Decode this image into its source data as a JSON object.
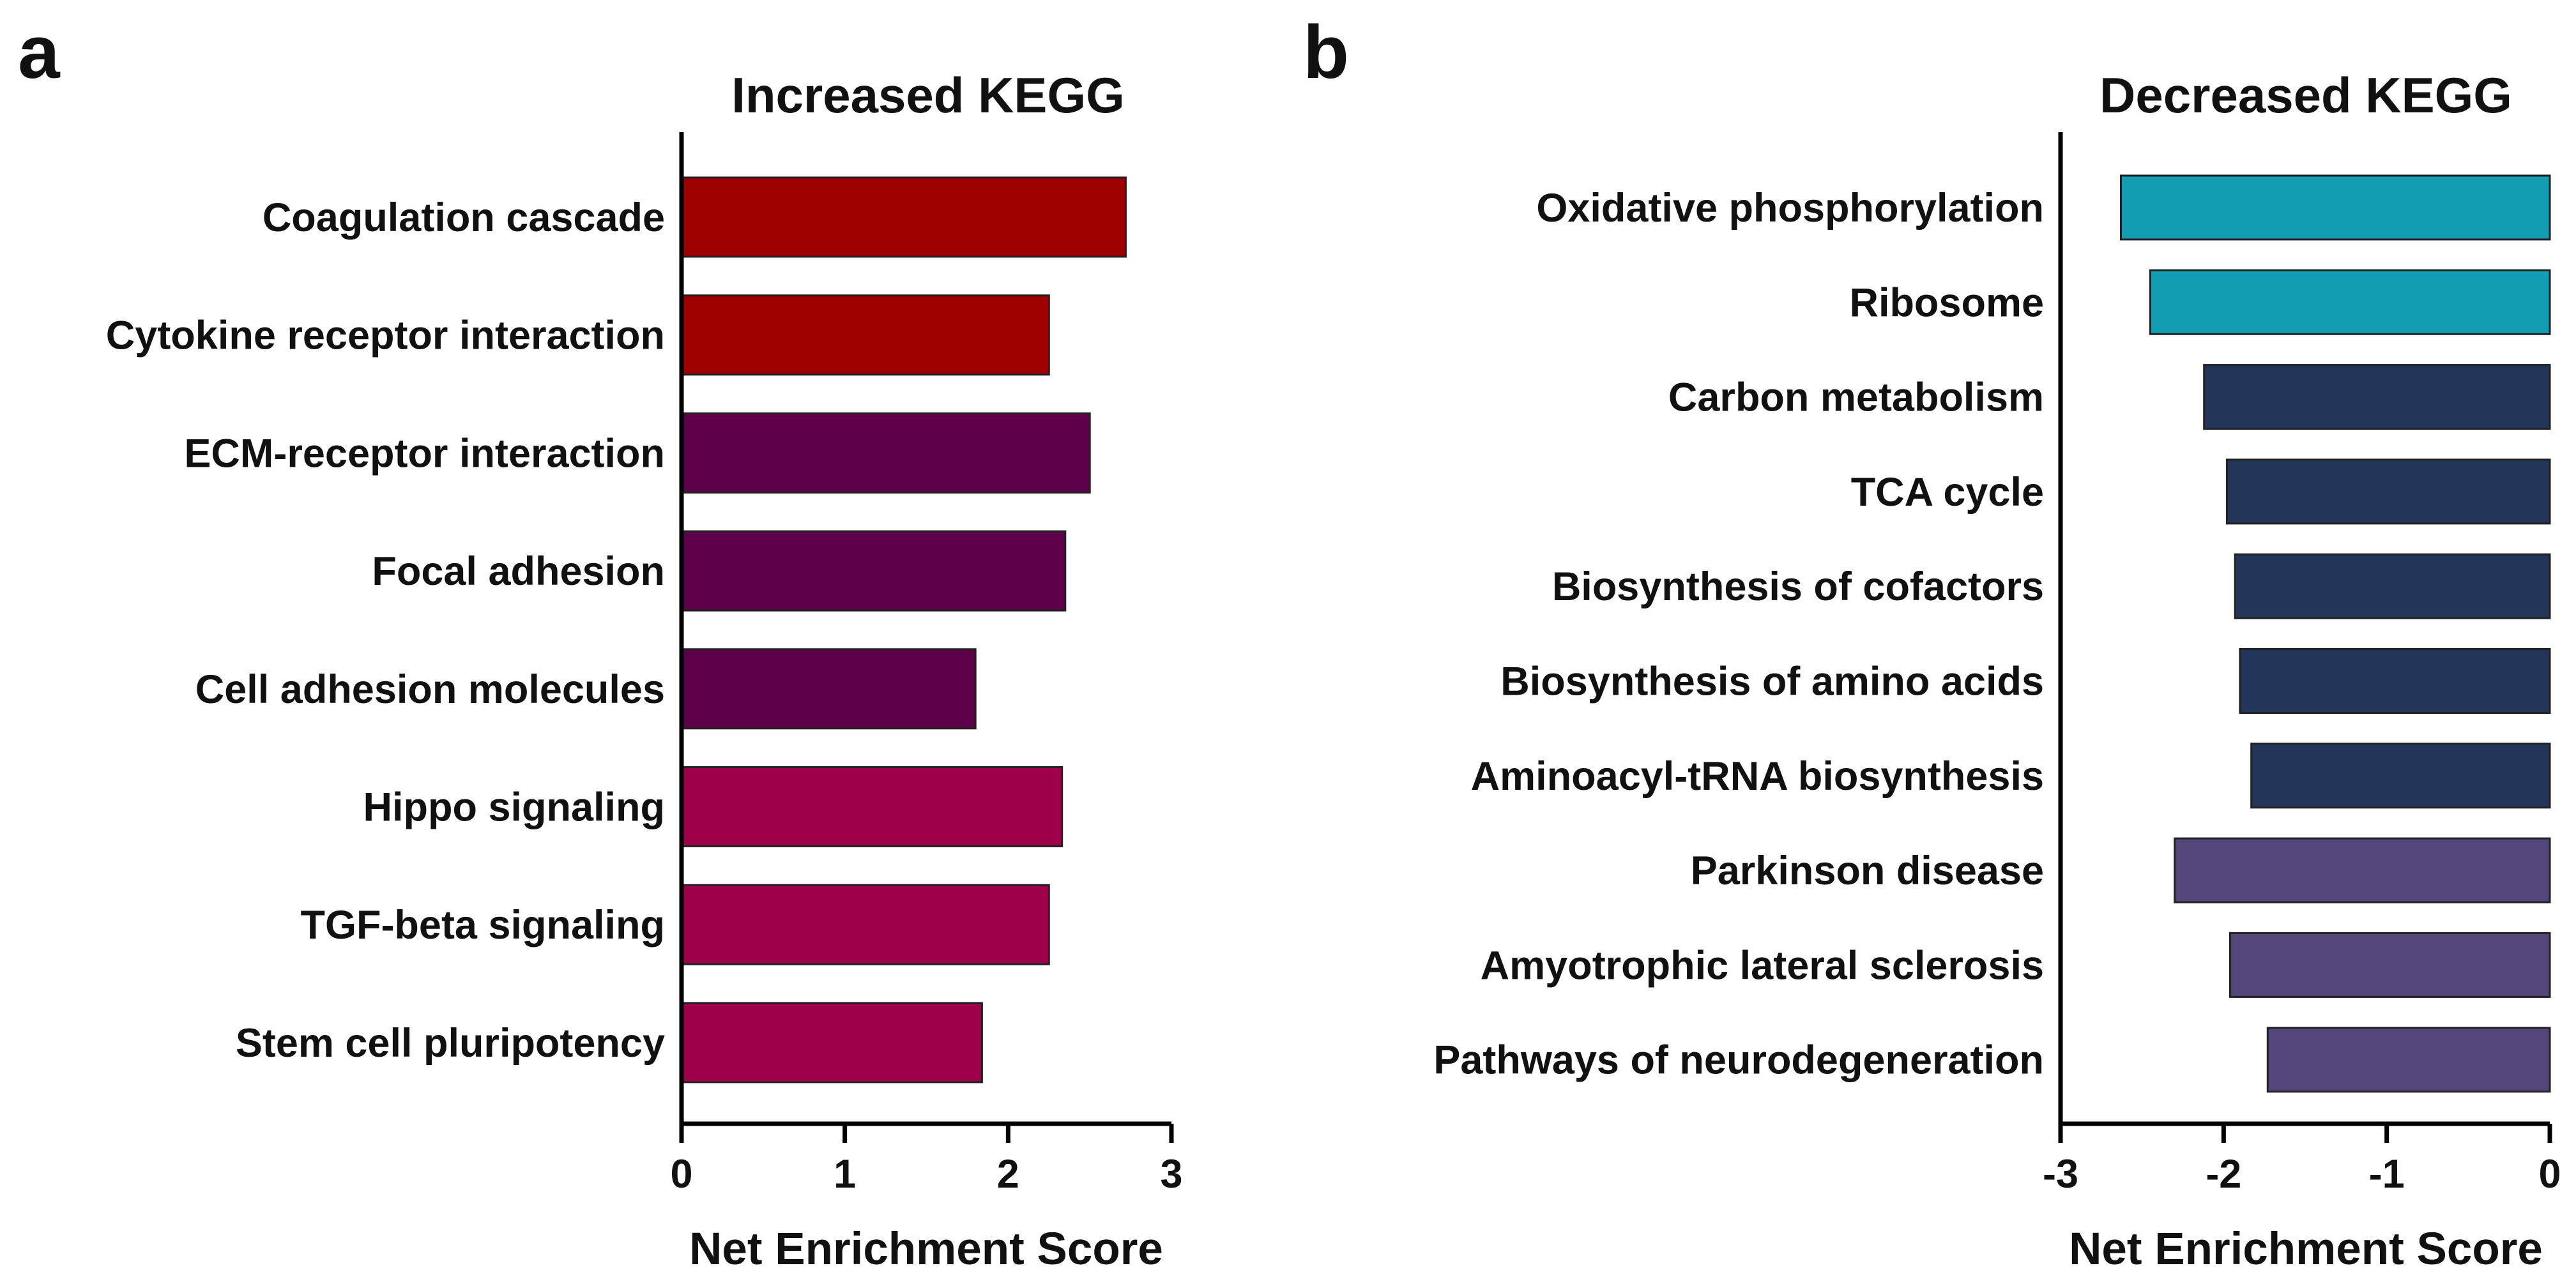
{
  "panels": {
    "a": {
      "letter": "a"
    },
    "b": {
      "letter": "b"
    }
  },
  "chart_data": [
    {
      "type": "bar",
      "orientation": "horizontal",
      "panel": "a",
      "title": "Increased KEGG",
      "xlabel": "Net Enrichment Score",
      "ylabel": "",
      "xlim": [
        0,
        3
      ],
      "xticks": [
        0,
        1,
        2,
        3
      ],
      "tick_labels": [
        "0",
        "1",
        "2",
        "3"
      ],
      "categories": [
        "Coagulation cascade",
        "Cytokine receptor interaction",
        "ECM-receptor interaction",
        "Focal adhesion",
        "Cell adhesion molecules",
        "Hippo signaling",
        "TGF-beta signaling",
        "Stem cell pluripotency"
      ],
      "values": [
        2.72,
        2.25,
        2.5,
        2.35,
        1.8,
        2.33,
        2.25,
        1.84
      ],
      "colors": [
        "#9f0000",
        "#9f0000",
        "#5f004b",
        "#5f004b",
        "#5f004b",
        "#9e0049",
        "#9e0049",
        "#9e0049"
      ],
      "grid": false
    },
    {
      "type": "bar",
      "orientation": "horizontal",
      "panel": "b",
      "title": "Decreased KEGG",
      "xlabel": "Net Enrichment Score",
      "ylabel": "",
      "xlim": [
        -3,
        0
      ],
      "xticks": [
        -3,
        -2,
        -1,
        0
      ],
      "tick_labels": [
        "-3",
        "-2",
        "-1",
        "0"
      ],
      "categories": [
        "Oxidative phosphorylation",
        "Ribosome",
        "Carbon metabolism",
        "TCA cycle",
        "Biosynthesis of cofactors",
        "Biosynthesis of amino acids",
        "Aminoacyl-tRNA biosynthesis",
        "Parkinson disease",
        "Amyotrophic lateral sclerosis",
        "Pathways of neurodegeneration"
      ],
      "values": [
        -2.63,
        -2.45,
        -2.12,
        -1.98,
        -1.93,
        -1.9,
        -1.83,
        -2.3,
        -1.96,
        -1.73
      ],
      "colors": [
        "#129db2",
        "#129db2",
        "#233559",
        "#233559",
        "#233559",
        "#233559",
        "#233559",
        "#52467a",
        "#52467a",
        "#52467a"
      ],
      "grid": false
    }
  ]
}
